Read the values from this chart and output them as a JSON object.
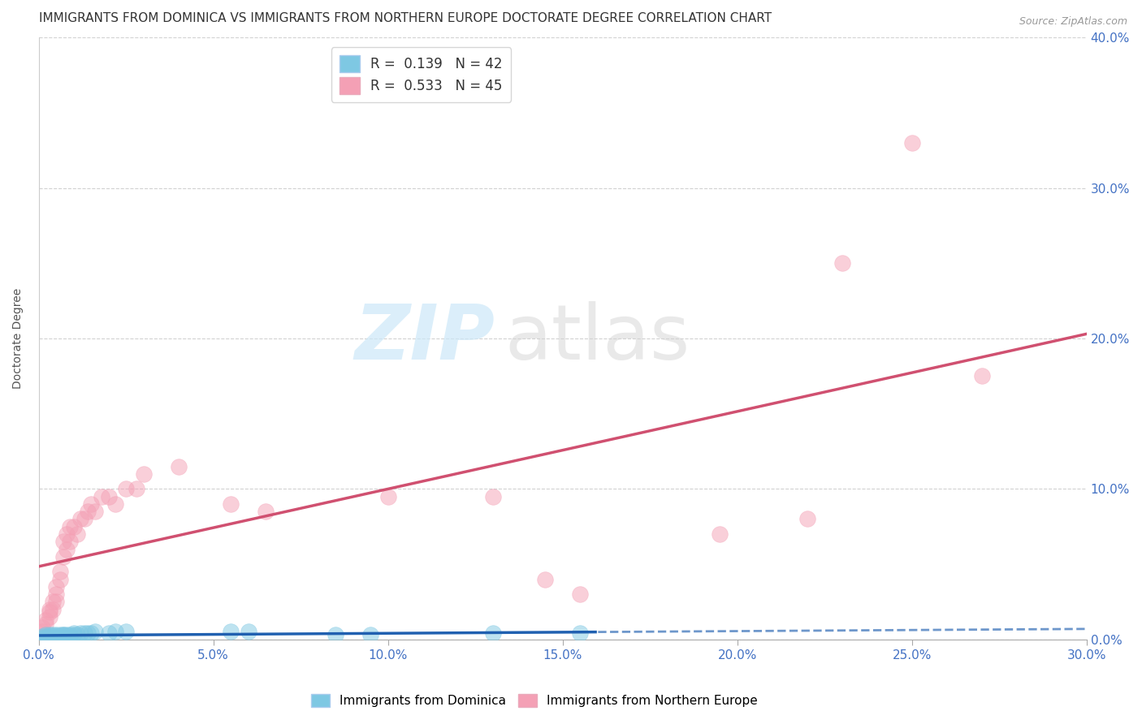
{
  "title": "IMMIGRANTS FROM DOMINICA VS IMMIGRANTS FROM NORTHERN EUROPE DOCTORATE DEGREE CORRELATION CHART",
  "source": "Source: ZipAtlas.com",
  "ylabel": "Doctorate Degree",
  "xlabel_ticks": [
    "0.0%",
    "5.0%",
    "10.0%",
    "15.0%",
    "20.0%",
    "25.0%",
    "30.0%"
  ],
  "xlabel_vals": [
    0.0,
    0.05,
    0.1,
    0.15,
    0.2,
    0.25,
    0.3
  ],
  "yright_ticks": [
    "0.0%",
    "10.0%",
    "20.0%",
    "30.0%",
    "40.0%"
  ],
  "yright_vals": [
    0.0,
    0.1,
    0.2,
    0.3,
    0.4
  ],
  "xlim": [
    0.0,
    0.3
  ],
  "ylim": [
    0.0,
    0.4
  ],
  "dominica_x": [
    0.001,
    0.001,
    0.002,
    0.002,
    0.002,
    0.003,
    0.003,
    0.003,
    0.004,
    0.004,
    0.004,
    0.005,
    0.005,
    0.005,
    0.005,
    0.006,
    0.006,
    0.006,
    0.007,
    0.007,
    0.007,
    0.008,
    0.008,
    0.009,
    0.009,
    0.01,
    0.01,
    0.011,
    0.012,
    0.013,
    0.014,
    0.015,
    0.016,
    0.02,
    0.022,
    0.025,
    0.055,
    0.06,
    0.085,
    0.095,
    0.13,
    0.155
  ],
  "dominica_y": [
    0.001,
    0.002,
    0.001,
    0.002,
    0.003,
    0.001,
    0.002,
    0.003,
    0.001,
    0.002,
    0.003,
    0.001,
    0.002,
    0.002,
    0.003,
    0.001,
    0.002,
    0.003,
    0.002,
    0.003,
    0.003,
    0.002,
    0.003,
    0.002,
    0.003,
    0.003,
    0.004,
    0.003,
    0.004,
    0.004,
    0.004,
    0.004,
    0.005,
    0.004,
    0.005,
    0.005,
    0.005,
    0.005,
    0.003,
    0.003,
    0.004,
    0.004
  ],
  "northern_europe_x": [
    0.001,
    0.001,
    0.002,
    0.002,
    0.003,
    0.003,
    0.003,
    0.004,
    0.004,
    0.005,
    0.005,
    0.005,
    0.006,
    0.006,
    0.007,
    0.007,
    0.008,
    0.008,
    0.009,
    0.009,
    0.01,
    0.011,
    0.012,
    0.013,
    0.014,
    0.015,
    0.016,
    0.018,
    0.02,
    0.022,
    0.025,
    0.028,
    0.03,
    0.04,
    0.055,
    0.065,
    0.1,
    0.13,
    0.145,
    0.155,
    0.195,
    0.22,
    0.23,
    0.25,
    0.27
  ],
  "northern_europe_y": [
    0.005,
    0.008,
    0.01,
    0.013,
    0.015,
    0.018,
    0.02,
    0.02,
    0.025,
    0.025,
    0.03,
    0.035,
    0.04,
    0.045,
    0.055,
    0.065,
    0.06,
    0.07,
    0.065,
    0.075,
    0.075,
    0.07,
    0.08,
    0.08,
    0.085,
    0.09,
    0.085,
    0.095,
    0.095,
    0.09,
    0.1,
    0.1,
    0.11,
    0.115,
    0.09,
    0.085,
    0.095,
    0.095,
    0.04,
    0.03,
    0.07,
    0.08,
    0.25,
    0.33,
    0.175
  ],
  "dominica_color": "#7ec8e3",
  "northern_europe_color": "#f4a0b5",
  "dominica_line_color": "#2060b0",
  "northern_europe_line_color": "#d05070",
  "background_color": "#ffffff",
  "watermark_zip_color": "#cce8f8",
  "watermark_atlas_color": "#d4d4d4",
  "title_fontsize": 11,
  "axis_label_fontsize": 10,
  "tick_fontsize": 11,
  "legend_r_entries": [
    "R =  0.139   N = 42",
    "R =  0.533   N = 45"
  ],
  "legend_bottom": [
    "Immigrants from Dominica",
    "Immigrants from Northern Europe"
  ],
  "dominica_line_solid_end": 0.16,
  "r_dominica": 0.139,
  "r_ne": 0.533
}
